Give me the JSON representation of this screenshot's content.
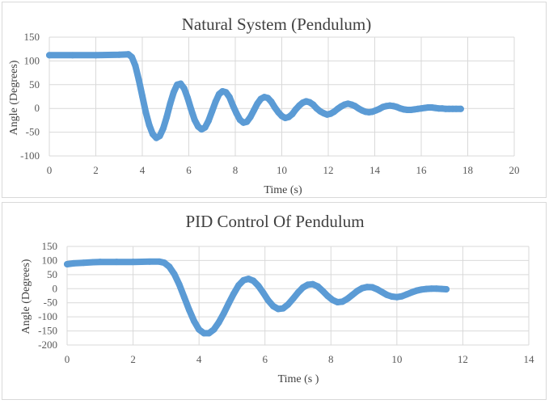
{
  "chart_data": [
    {
      "type": "scatter",
      "title": "Natural System (Pendulum)",
      "xlabel": "Time (s)",
      "ylabel": "Angle (Degrees)",
      "xlim": [
        0,
        20
      ],
      "ylim": [
        -100,
        150
      ],
      "xticks": [
        0,
        2,
        4,
        6,
        8,
        10,
        12,
        14,
        16,
        18,
        20
      ],
      "yticks": [
        -100,
        -50,
        0,
        50,
        100,
        150
      ],
      "grid": true,
      "legend": "none",
      "color": "#5B9BD5",
      "series": [
        {
          "x": [
            0,
            1,
            2,
            3,
            3.4,
            3.55,
            3.7,
            3.85,
            4.0,
            4.15,
            4.3,
            4.45,
            4.6,
            4.75,
            4.9,
            5.05,
            5.2,
            5.35,
            5.5,
            5.65,
            5.8,
            5.95,
            6.1,
            6.25,
            6.4,
            6.55,
            6.7,
            6.85,
            7.0,
            7.15,
            7.3,
            7.45,
            7.6,
            7.75,
            7.9,
            8.05,
            8.2,
            8.35,
            8.5,
            8.65,
            8.8,
            8.95,
            9.1,
            9.25,
            9.4,
            9.55,
            9.7,
            9.85,
            10.0,
            10.15,
            10.3,
            10.45,
            10.6,
            10.75,
            10.9,
            11.05,
            11.2,
            11.35,
            11.5,
            11.65,
            11.8,
            11.95,
            12.1,
            12.25,
            12.4,
            12.55,
            12.7,
            12.85,
            13.0,
            13.15,
            13.3,
            13.45,
            13.6,
            13.75,
            13.9,
            14.05,
            14.2,
            14.35,
            14.5,
            14.65,
            14.8,
            14.95,
            15.1,
            15.25,
            15.4,
            15.55,
            15.7,
            15.85,
            16.0,
            16.15,
            16.3,
            16.45,
            16.6,
            16.75,
            16.9,
            17.05,
            17.2,
            17.35,
            17.5,
            17.7
          ],
          "y": [
            112,
            112,
            112,
            113,
            114,
            108,
            90,
            60,
            26,
            -8,
            -35,
            -54,
            -62,
            -58,
            -42,
            -18,
            10,
            34,
            50,
            52,
            42,
            22,
            -2,
            -24,
            -38,
            -44,
            -40,
            -26,
            -6,
            14,
            30,
            36,
            34,
            24,
            6,
            -10,
            -24,
            -30,
            -28,
            -18,
            -4,
            10,
            20,
            24,
            22,
            14,
            2,
            -8,
            -16,
            -20,
            -18,
            -12,
            -2,
            6,
            12,
            15,
            13,
            8,
            0,
            -6,
            -10,
            -13,
            -11,
            -7,
            -1,
            4,
            8,
            10,
            8,
            5,
            0,
            -4,
            -7,
            -8,
            -7,
            -4,
            -1,
            3,
            5,
            6,
            5,
            3,
            0,
            -2,
            -3,
            -3,
            -2,
            -1,
            0,
            1,
            2,
            2,
            1,
            0,
            0,
            -1,
            -1,
            -1,
            -1,
            -1
          ]
        }
      ]
    },
    {
      "type": "scatter",
      "title": "PID Control Of Pendulum",
      "xlabel": "Time (s )",
      "ylabel": "Angle (Degrees)",
      "xlim": [
        0,
        14
      ],
      "ylim": [
        -200,
        150
      ],
      "xticks": [
        0,
        2,
        4,
        6,
        8,
        10,
        12,
        14
      ],
      "yticks": [
        -200,
        -150,
        -100,
        -50,
        0,
        50,
        100,
        150
      ],
      "grid": true,
      "legend": "none",
      "color": "#5B9BD5",
      "series": [
        {
          "x": [
            0,
            0.2,
            0.5,
            0.8,
            1.0,
            1.5,
            2.0,
            2.5,
            2.8,
            2.95,
            3.1,
            3.25,
            3.4,
            3.55,
            3.7,
            3.85,
            4.0,
            4.15,
            4.3,
            4.45,
            4.6,
            4.75,
            4.9,
            5.05,
            5.2,
            5.35,
            5.5,
            5.65,
            5.8,
            5.95,
            6.1,
            6.25,
            6.4,
            6.55,
            6.7,
            6.85,
            7.0,
            7.15,
            7.3,
            7.45,
            7.6,
            7.75,
            7.9,
            8.05,
            8.2,
            8.35,
            8.5,
            8.65,
            8.8,
            8.95,
            9.1,
            9.25,
            9.4,
            9.55,
            9.7,
            9.85,
            10.0,
            10.15,
            10.3,
            10.45,
            10.6,
            10.75,
            10.9,
            11.05,
            11.2,
            11.35,
            11.5
          ],
          "y": [
            87,
            90,
            92,
            94,
            95,
            95,
            95,
            96,
            96,
            92,
            78,
            52,
            15,
            -30,
            -75,
            -115,
            -145,
            -158,
            -158,
            -145,
            -120,
            -88,
            -52,
            -18,
            12,
            30,
            35,
            28,
            10,
            -15,
            -42,
            -62,
            -72,
            -70,
            -56,
            -36,
            -14,
            4,
            14,
            16,
            8,
            -8,
            -26,
            -40,
            -48,
            -46,
            -36,
            -22,
            -8,
            2,
            6,
            5,
            -2,
            -12,
            -22,
            -28,
            -30,
            -27,
            -20,
            -13,
            -7,
            -3,
            -1,
            0,
            0,
            -1,
            -2
          ]
        }
      ]
    }
  ]
}
